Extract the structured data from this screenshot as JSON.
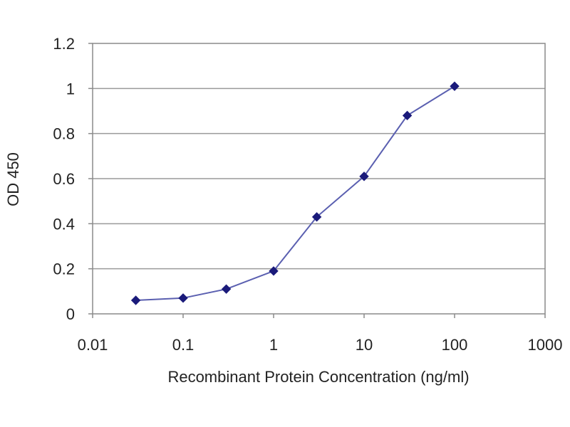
{
  "chart_data": {
    "type": "line",
    "title": "",
    "xlabel": "Recombinant Protein Concentration (ng/ml)",
    "ylabel": "OD 450",
    "x_scale": "log",
    "xlim": [
      0.01,
      1000
    ],
    "ylim": [
      0,
      1.2
    ],
    "x_ticks": [
      "0.01",
      "0.1",
      "1",
      "10",
      "100",
      "1000"
    ],
    "y_ticks": [
      "0",
      "0.2",
      "0.4",
      "0.6",
      "0.8",
      "1",
      "1.2"
    ],
    "grid": "horizontal",
    "legend": "none",
    "series": [
      {
        "x": [
          0.03,
          0.1,
          0.3,
          1,
          3,
          10,
          30,
          100
        ],
        "y": [
          0.06,
          0.07,
          0.11,
          0.19,
          0.43,
          0.61,
          0.88,
          1.01
        ]
      }
    ],
    "colors": {
      "line": "#5a5fb0",
      "marker": "#1a1a7a",
      "grid": "#9a9a9a",
      "axis": "#8a8a8a"
    }
  }
}
